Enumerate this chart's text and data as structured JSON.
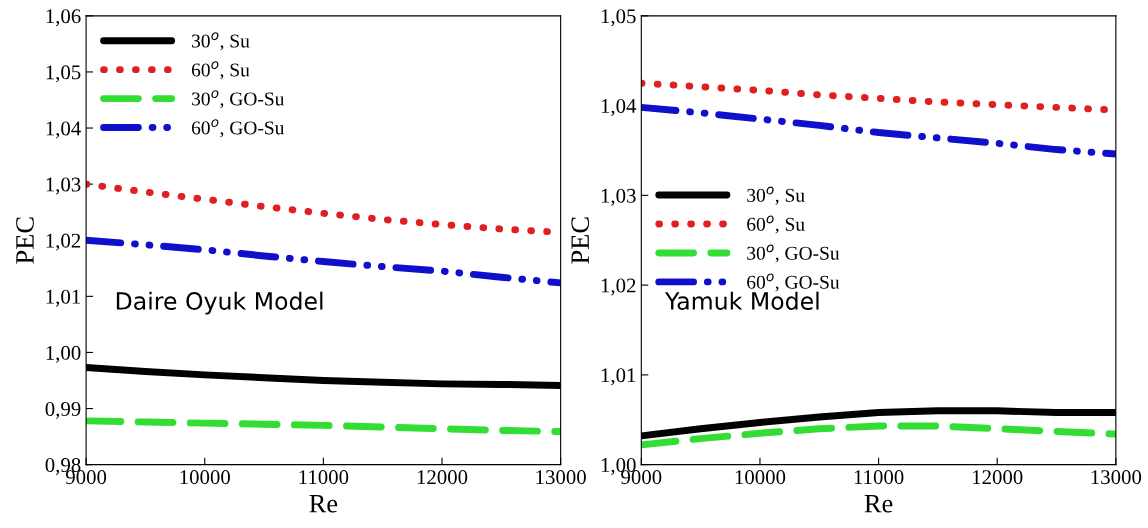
{
  "chart_data": [
    {
      "type": "line",
      "xlabel": "Re",
      "ylabel": "PEC",
      "legend": "upper left",
      "grid": false,
      "annotations": [
        "Daire Oyuk Model"
      ],
      "x": [
        9000,
        9500,
        10000,
        10500,
        11000,
        11500,
        12000,
        12500,
        13000
      ],
      "xlim": [
        9000,
        13000
      ],
      "xticks": [
        9000,
        10000,
        11000,
        12000,
        13000
      ],
      "ylim": [
        0.98,
        1.06
      ],
      "yticks": [
        {
          "value": 0.98,
          "label": "0,98"
        },
        {
          "value": 0.99,
          "label": "0,99"
        },
        {
          "value": 1.0,
          "label": "1,00"
        },
        {
          "value": 1.01,
          "label": "1,01"
        },
        {
          "value": 1.02,
          "label": "1,02"
        },
        {
          "value": 1.03,
          "label": "1,03"
        },
        {
          "value": 1.04,
          "label": "1,04"
        },
        {
          "value": 1.05,
          "label": "1,05"
        },
        {
          "value": 1.06,
          "label": "1,06"
        }
      ],
      "series": [
        {
          "name": "30$^{o}$, Su",
          "color": "#000000",
          "line_style": "solid",
          "values": [
            0.9973,
            0.9966,
            0.996,
            0.9955,
            0.995,
            0.9947,
            0.9944,
            0.9943,
            0.9941
          ]
        },
        {
          "name": "60$^{o}$, Su",
          "color": "#e02020",
          "line_style": "dotted",
          "values": [
            1.03,
            1.0286,
            1.0273,
            1.026,
            1.0248,
            1.0237,
            1.0228,
            1.022,
            1.0214
          ]
        },
        {
          "name": "30$^{o}$, GO-Su",
          "color": "#33dd33",
          "line_style": "dashed",
          "values": [
            0.9878,
            0.9876,
            0.9874,
            0.9872,
            0.987,
            0.9867,
            0.9864,
            0.9861,
            0.9859
          ]
        },
        {
          "name": "60$^{o}$, GO-Su",
          "color": "#1010cc",
          "line_style": "dashdot",
          "values": [
            1.02,
            1.0192,
            1.0183,
            1.0172,
            1.0162,
            1.0153,
            1.0145,
            1.0134,
            1.0124
          ]
        }
      ]
    },
    {
      "type": "line",
      "xlabel": "Re",
      "ylabel": "PEC",
      "legend": "center left",
      "grid": false,
      "annotations": [
        "Yamuk Model"
      ],
      "x": [
        9000,
        9500,
        10000,
        10500,
        11000,
        11500,
        12000,
        12500,
        13000
      ],
      "xlim": [
        9000,
        13000
      ],
      "xticks": [
        9000,
        10000,
        11000,
        12000,
        13000
      ],
      "ylim": [
        1.0,
        1.05
      ],
      "yticks": [
        {
          "value": 1.0,
          "label": "1,00"
        },
        {
          "value": 1.01,
          "label": "1,01"
        },
        {
          "value": 1.02,
          "label": "1,02"
        },
        {
          "value": 1.03,
          "label": "1,03"
        },
        {
          "value": 1.04,
          "label": "1,04"
        },
        {
          "value": 1.05,
          "label": "1,05"
        }
      ],
      "series": [
        {
          "name": "30$^{o}$, Su",
          "color": "#000000",
          "line_style": "solid",
          "values": [
            1.0032,
            1.004,
            1.0047,
            1.0053,
            1.0058,
            1.006,
            1.006,
            1.0058,
            1.0058
          ]
        },
        {
          "name": "60$^{o}$, Su",
          "color": "#e02020",
          "line_style": "dotted",
          "values": [
            1.0425,
            1.0421,
            1.0417,
            1.0412,
            1.0408,
            1.0404,
            1.0401,
            1.0398,
            1.0395
          ]
        },
        {
          "name": "30$^{o}$, GO-Su",
          "color": "#33dd33",
          "line_style": "dashed",
          "values": [
            1.0022,
            1.0029,
            1.0035,
            1.004,
            1.0043,
            1.0043,
            1.004,
            1.0037,
            1.0034
          ]
        },
        {
          "name": "60$^{o}$, GO-Su",
          "color": "#1010cc",
          "line_style": "dashdot",
          "values": [
            1.0398,
            1.0392,
            1.0385,
            1.0378,
            1.037,
            1.0364,
            1.0358,
            1.0351,
            1.0346
          ]
        }
      ]
    }
  ]
}
